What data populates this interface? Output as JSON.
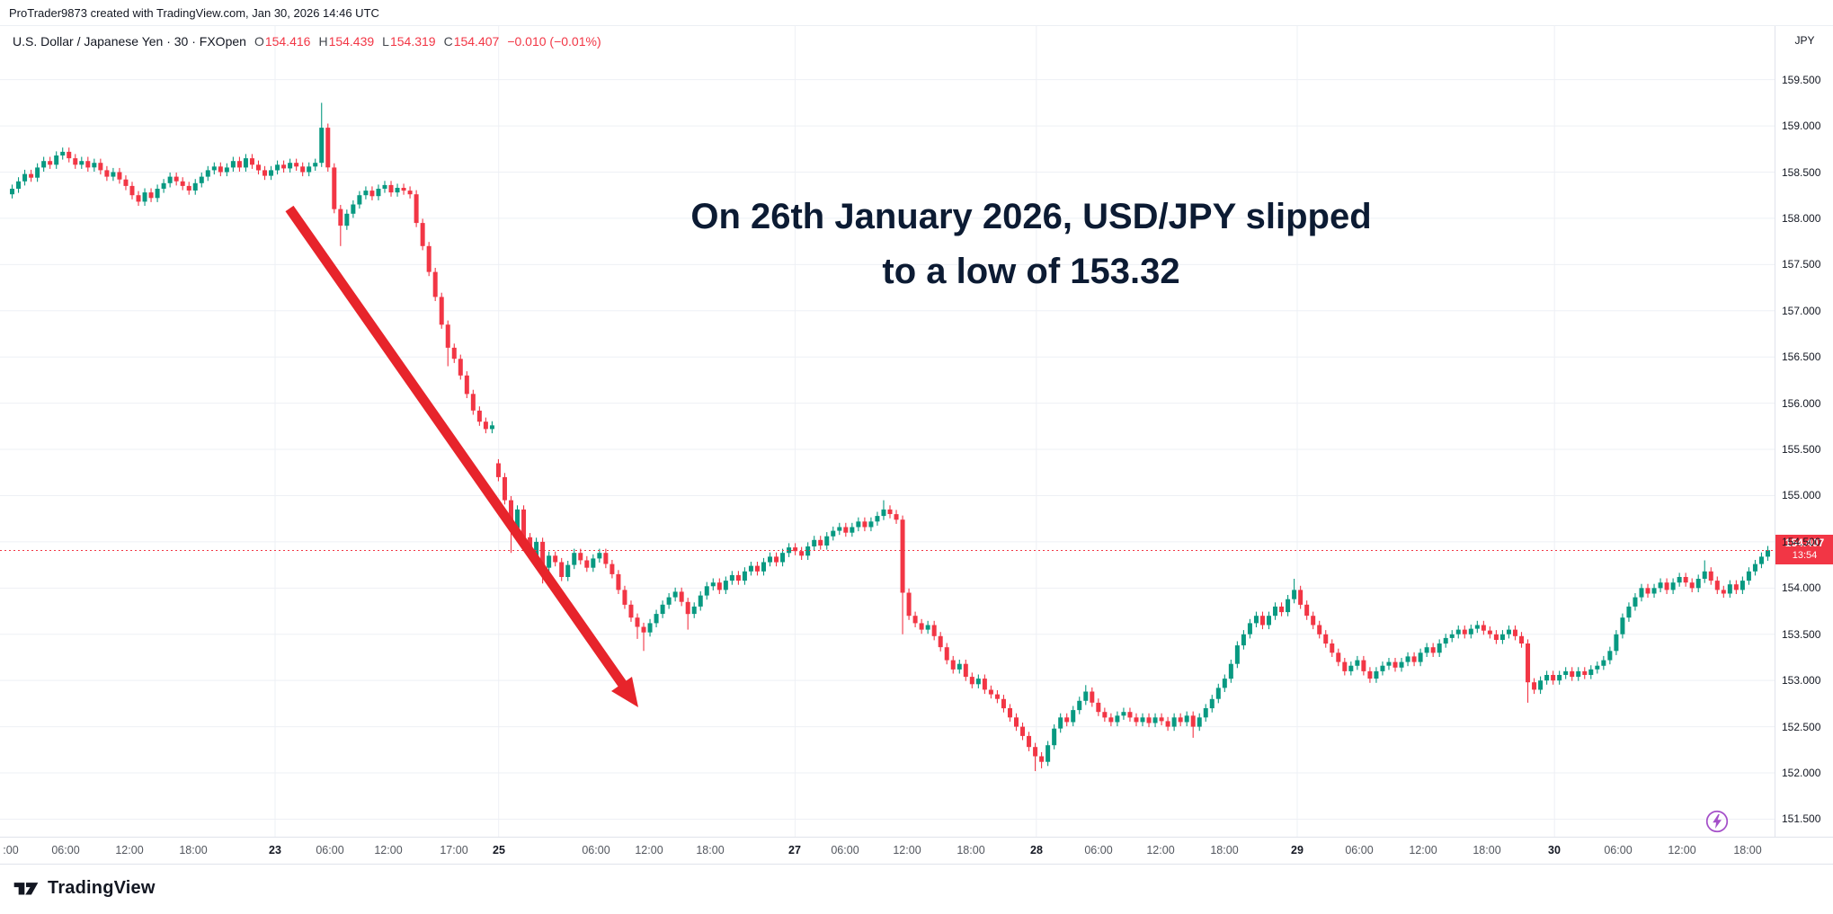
{
  "attribution": "ProTrader9873 created with TradingView.com, Jan 30, 2026 14:46 UTC",
  "header": {
    "title_full": "U.S. Dollar / Japanese Yen · 30 · FXOpen",
    "ohlc": {
      "o_label": "O",
      "o": "154.416",
      "h_label": "H",
      "h": "154.439",
      "l_label": "L",
      "l": "154.319",
      "c_label": "C",
      "c": "154.407",
      "change": "−0.010 (−0.01%)"
    }
  },
  "annotation": {
    "line1": "On 26th January 2026, USD/JPY slipped",
    "line2": "to a low of 153.32"
  },
  "price_axis": {
    "currency": "JPY",
    "last_price_label": "154.407",
    "countdown": "13:54"
  },
  "time_axis": {
    "labels": [
      {
        "t": ":00",
        "x": 0.006,
        "major": false
      },
      {
        "t": "06:00",
        "x": 0.037,
        "major": false
      },
      {
        "t": "12:00",
        "x": 0.073,
        "major": false
      },
      {
        "t": "18:00",
        "x": 0.109,
        "major": false
      },
      {
        "t": "23",
        "x": 0.155,
        "major": true
      },
      {
        "t": "06:00",
        "x": 0.186,
        "major": false
      },
      {
        "t": "12:00",
        "x": 0.219,
        "major": false
      },
      {
        "t": "17:00",
        "x": 0.256,
        "major": false
      },
      {
        "t": "25",
        "x": 0.281,
        "major": true
      },
      {
        "t": "06:00",
        "x": 0.336,
        "major": false
      },
      {
        "t": "12:00",
        "x": 0.366,
        "major": false
      },
      {
        "t": "18:00",
        "x": 0.4,
        "major": false
      },
      {
        "t": "27",
        "x": 0.448,
        "major": true
      },
      {
        "t": "06:00",
        "x": 0.476,
        "major": false
      },
      {
        "t": "12:00",
        "x": 0.511,
        "major": false
      },
      {
        "t": "18:00",
        "x": 0.547,
        "major": false
      },
      {
        "t": "28",
        "x": 0.584,
        "major": true
      },
      {
        "t": "06:00",
        "x": 0.619,
        "major": false
      },
      {
        "t": "12:00",
        "x": 0.654,
        "major": false
      },
      {
        "t": "18:00",
        "x": 0.69,
        "major": false
      },
      {
        "t": "29",
        "x": 0.731,
        "major": true
      },
      {
        "t": "06:00",
        "x": 0.766,
        "major": false
      },
      {
        "t": "12:00",
        "x": 0.802,
        "major": false
      },
      {
        "t": "18:00",
        "x": 0.838,
        "major": false
      },
      {
        "t": "30",
        "x": 0.876,
        "major": true
      },
      {
        "t": "06:00",
        "x": 0.912,
        "major": false
      },
      {
        "t": "12:00",
        "x": 0.948,
        "major": false
      },
      {
        "t": "18:00",
        "x": 0.985,
        "major": false
      }
    ]
  },
  "footer": {
    "brand": "TradingView"
  },
  "colors": {
    "up": "#089981",
    "down": "#f23645",
    "arrow": "#e7242b",
    "annotation_text": "#0c1b33",
    "grid": "#eef0f5",
    "axis_text": "#131722",
    "badge_bg": "#f23645",
    "last_price_line": "#f23645",
    "lightning": "#a44fc9",
    "brand_text": "#131722",
    "legend_value": "#f23645"
  },
  "chart_data": {
    "type": "candlestick",
    "title": "U.S. Dollar / Japanese Yen, 30, FXOpen",
    "ylabel": "JPY",
    "y_ticks": [
      159.5,
      159.0,
      158.5,
      158.0,
      157.5,
      157.0,
      156.5,
      156.0,
      155.5,
      155.0,
      154.5,
      154.0,
      153.5,
      153.0,
      152.5,
      152.0,
      151.5
    ],
    "price_top": 160.08,
    "price_bottom": 151.31,
    "last": 154.407,
    "annotated_low": 153.32,
    "readout": {
      "open": 154.416,
      "high": 154.439,
      "low": 154.319,
      "close": 154.407,
      "change": -0.01,
      "change_pct": -0.01
    },
    "first_open": 158.26,
    "default_wick": 0.045,
    "session_break_fracs": [
      0.155,
      0.281,
      0.448,
      0.584,
      0.731,
      0.876
    ],
    "closes": [
      158.32,
      158.4,
      158.48,
      158.44,
      158.55,
      158.62,
      158.58,
      158.68,
      158.72,
      158.65,
      158.58,
      158.62,
      158.55,
      158.6,
      158.52,
      158.45,
      158.5,
      158.42,
      158.35,
      158.25,
      158.18,
      158.28,
      158.22,
      158.32,
      158.38,
      158.45,
      158.4,
      158.35,
      158.3,
      158.38,
      158.45,
      158.52,
      158.56,
      158.5,
      158.55,
      158.62,
      158.55,
      158.65,
      158.58,
      158.52,
      158.46,
      158.52,
      158.58,
      158.54,
      158.6,
      158.56,
      158.5,
      158.56,
      158.6,
      158.98,
      158.55,
      158.1,
      157.92,
      158.05,
      158.15,
      158.25,
      158.3,
      158.24,
      158.32,
      158.36,
      158.28,
      158.33,
      158.3,
      158.26,
      157.95,
      157.7,
      157.42,
      157.15,
      156.85,
      156.6,
      156.48,
      156.3,
      156.1,
      155.92,
      155.8,
      155.72,
      155.76,
      155.2,
      154.95,
      154.65,
      154.85,
      154.55,
      154.35,
      154.5,
      154.22,
      154.35,
      154.28,
      154.12,
      154.25,
      154.38,
      154.3,
      154.22,
      154.32,
      154.38,
      154.26,
      154.15,
      153.98,
      153.82,
      153.68,
      153.58,
      153.52,
      153.62,
      153.72,
      153.82,
      153.9,
      153.96,
      153.85,
      153.72,
      153.8,
      153.92,
      154.02,
      154.06,
      153.98,
      154.08,
      154.14,
      154.08,
      154.18,
      154.24,
      154.18,
      154.28,
      154.34,
      154.28,
      154.38,
      154.44,
      154.4,
      154.35,
      154.45,
      154.52,
      154.46,
      154.56,
      154.62,
      154.66,
      154.6,
      154.66,
      154.72,
      154.66,
      154.72,
      154.78,
      154.85,
      154.8,
      154.74,
      153.95,
      153.7,
      153.62,
      153.55,
      153.6,
      153.48,
      153.36,
      153.22,
      153.12,
      153.18,
      153.04,
      152.96,
      153.02,
      152.9,
      152.85,
      152.8,
      152.7,
      152.6,
      152.5,
      152.4,
      152.28,
      152.18,
      152.12,
      152.3,
      152.48,
      152.6,
      152.55,
      152.68,
      152.78,
      152.88,
      152.76,
      152.66,
      152.6,
      152.55,
      152.62,
      152.66,
      152.6,
      152.55,
      152.6,
      152.54,
      152.6,
      152.56,
      152.5,
      152.6,
      152.55,
      152.62,
      152.5,
      152.6,
      152.7,
      152.8,
      152.92,
      153.02,
      153.18,
      153.38,
      153.5,
      153.62,
      153.7,
      153.6,
      153.7,
      153.8,
      153.74,
      153.88,
      153.98,
      153.82,
      153.7,
      153.6,
      153.5,
      153.4,
      153.3,
      153.2,
      153.1,
      153.16,
      153.22,
      153.1,
      153.02,
      153.1,
      153.16,
      153.2,
      153.14,
      153.2,
      153.26,
      153.2,
      153.3,
      153.36,
      153.3,
      153.4,
      153.46,
      153.5,
      153.55,
      153.5,
      153.56,
      153.6,
      153.54,
      153.5,
      153.44,
      153.5,
      153.55,
      153.48,
      153.4,
      152.98,
      152.9,
      153.0,
      153.06,
      153.0,
      153.06,
      153.1,
      153.04,
      153.1,
      153.06,
      153.12,
      153.16,
      153.22,
      153.32,
      153.5,
      153.68,
      153.8,
      153.9,
      154.0,
      153.94,
      154.0,
      154.06,
      153.98,
      154.06,
      154.12,
      154.06,
      154.0,
      154.1,
      154.18,
      154.08,
      153.98,
      153.94,
      154.04,
      153.98,
      154.08,
      154.18,
      154.26,
      154.34,
      154.41
    ],
    "open_overrides": {
      "77": 155.35
    },
    "wick_overrides": {
      "49": {
        "h": 159.25
      },
      "52": {
        "l": 157.7
      },
      "69": {
        "l": 156.4
      },
      "79": {
        "l": 154.38
      },
      "84": {
        "l": 154.05
      },
      "99": {
        "l": 153.45
      },
      "100": {
        "l": 153.32
      },
      "107": {
        "l": 153.55
      },
      "138": {
        "h": 154.95
      },
      "141": {
        "l": 153.5
      },
      "162": {
        "l": 152.02
      },
      "163": {
        "l": 152.05
      },
      "170": {
        "h": 152.95
      },
      "187": {
        "l": 152.38
      },
      "203": {
        "h": 154.1
      },
      "240": {
        "l": 152.76
      },
      "268": {
        "h": 154.3
      }
    }
  }
}
